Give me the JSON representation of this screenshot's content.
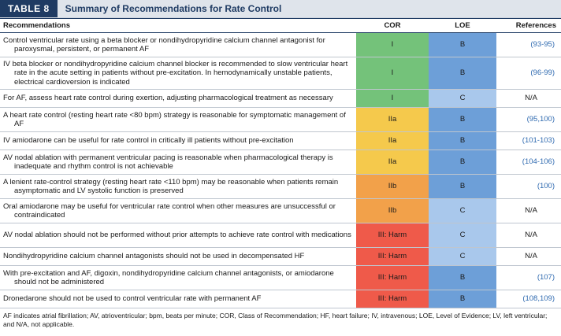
{
  "table": {
    "tag": "TABLE 8",
    "title": "Summary of Recommendations for Rate Control",
    "headers": {
      "recommendations": "Recommendations",
      "cor": "COR",
      "loe": "LOE",
      "references": "References"
    },
    "rows": [
      {
        "text": "Control ventricular rate using a beta blocker or nondihydropyridine calcium channel antagonist for paroxysmal, persistent, or permanent AF",
        "cor": "I",
        "loe": "B",
        "ref": "(93-95)"
      },
      {
        "text": "IV beta blocker or nondihydropyridine calcium channel blocker is recommended to slow ventricular heart rate in the acute setting in patients without pre-excitation. In hemodynamically unstable patients, electrical cardioversion is indicated",
        "cor": "I",
        "loe": "B",
        "ref": "(96-99)"
      },
      {
        "text": "For AF, assess heart rate control during exertion, adjusting pharmacological treatment as necessary",
        "cor": "I",
        "loe": "C",
        "ref": "N/A"
      },
      {
        "text": "A heart rate control (resting heart rate <80 bpm) strategy is reasonable for symptomatic management of AF",
        "cor": "IIa",
        "loe": "B",
        "ref": "(95,100)"
      },
      {
        "text": "IV amiodarone can be useful for rate control in critically ill patients without pre-excitation",
        "cor": "IIa",
        "loe": "B",
        "ref": "(101-103)"
      },
      {
        "text": "AV nodal ablation with permanent ventricular pacing is reasonable when pharmacological therapy is inadequate and rhythm control is not achievable",
        "cor": "IIa",
        "loe": "B",
        "ref": "(104-106)"
      },
      {
        "text": "A lenient rate-control strategy (resting heart rate <110 bpm) may be reasonable when patients remain asymptomatic and LV systolic function is preserved",
        "cor": "IIb",
        "loe": "B",
        "ref": "(100)"
      },
      {
        "text": "Oral amiodarone may be useful for ventricular rate control when other measures are unsuccessful or contraindicated",
        "cor": "IIb",
        "loe": "C",
        "ref": "N/A"
      },
      {
        "text": "AV nodal ablation should not be performed without prior attempts to achieve rate control with medications",
        "cor": "III: Harm",
        "loe": "C",
        "ref": "N/A"
      },
      {
        "text": "Nondihydropyridine calcium channel antagonists should not be used in decompensated HF",
        "cor": "III: Harm",
        "loe": "C",
        "ref": "N/A"
      },
      {
        "text": "With pre-excitation and AF, digoxin, nondihydropyridine calcium channel antagonists, or amiodarone should not be administered",
        "cor": "III: Harm",
        "loe": "B",
        "ref": "(107)"
      },
      {
        "text": "Dronedarone should not be used to control ventricular rate with permanent AF",
        "cor": "III: Harm",
        "loe": "B",
        "ref": "(108,109)"
      }
    ],
    "footnote": "AF indicates atrial fibrillation; AV, atrioventricular; bpm, beats per minute; COR, Class of Recommendation; HF, heart failure; IV, intravenous; LOE, Level of Evidence; LV, left ventricular; and N/A, not applicable."
  },
  "colors": {
    "cor_I": "#74c27a",
    "cor_IIa": "#f5c94c",
    "cor_IIb": "#f2a14a",
    "cor_III": "#ef5a4a",
    "loe_B": "#6d9fd8",
    "loe_C": "#a9c8ec",
    "header_navy": "#1f3b63",
    "reference_link": "#2f6ab0"
  }
}
